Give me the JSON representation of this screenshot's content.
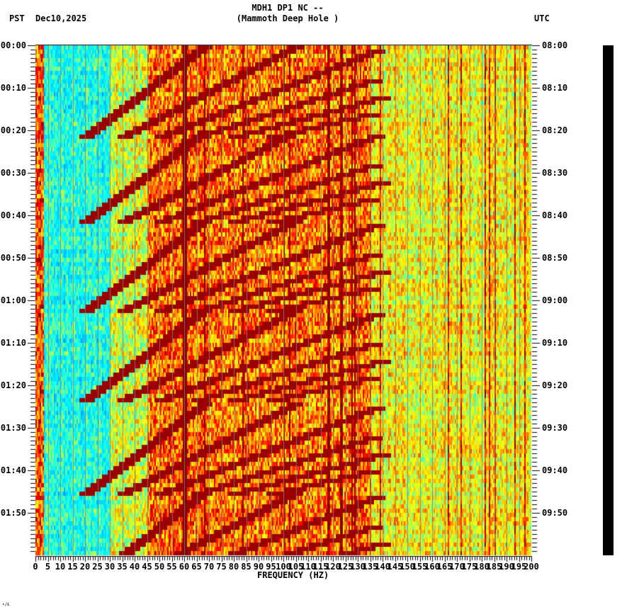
{
  "header": {
    "title_line1": "MDH1 DP1 NC --",
    "title_line2": "(Mammoth Deep Hole )",
    "left_timezone": "PST",
    "date": "Dec10,2025",
    "right_timezone": "UTC"
  },
  "footer_mark": "∙/Ł",
  "chart_data": {
    "type": "heatmap",
    "title": "MDH1 DP1 NC -- (Mammoth Deep Hole )",
    "subtitle": "Dec10,2025",
    "xlabel": "FREQUENCY (HZ)",
    "ylabel_left": "PST",
    "ylabel_right": "UTC",
    "xlim": [
      0,
      200
    ],
    "x_ticks": [
      0,
      5,
      10,
      15,
      20,
      25,
      30,
      35,
      40,
      45,
      50,
      55,
      60,
      65,
      70,
      75,
      80,
      85,
      90,
      95,
      100,
      105,
      110,
      115,
      120,
      125,
      130,
      135,
      140,
      145,
      150,
      155,
      160,
      165,
      170,
      175,
      180,
      185,
      190,
      195,
      200
    ],
    "x_tick_labels": [
      "0",
      "5",
      "10",
      "15",
      "20",
      "25",
      "30",
      "35",
      "40",
      "45",
      "50",
      "55",
      "60",
      "65",
      "70",
      "75",
      "80",
      "85",
      "90",
      "95",
      "100",
      "105",
      "110",
      "115",
      "120",
      "125",
      "130",
      "135",
      "140",
      "145",
      "150",
      "155",
      "160",
      "165",
      "170",
      "175",
      "180",
      "185",
      "190",
      "195",
      "200"
    ],
    "y_ticks_left": [
      "00:00",
      "00:10",
      "00:20",
      "00:30",
      "00:40",
      "00:50",
      "01:00",
      "01:10",
      "01:20",
      "01:30",
      "01:40",
      "01:50"
    ],
    "y_ticks_right": [
      "08:00",
      "08:10",
      "08:20",
      "08:30",
      "08:40",
      "08:50",
      "09:00",
      "09:10",
      "09:20",
      "09:30",
      "09:40",
      "09:50"
    ],
    "time_span_minutes": 120,
    "minor_tick_interval_minutes": 1,
    "grid": "vertical lines every 5 Hz",
    "colormap": [
      "#0050ff",
      "#00c8ff",
      "#00ffff",
      "#80ff80",
      "#ffff00",
      "#ff8000",
      "#ff0000",
      "#800000"
    ],
    "features": {
      "persistent_line_hz": 60,
      "chirp_harmonic_sequences_start_minutes": [
        0,
        20,
        41,
        62,
        84,
        105
      ],
      "chirp_repeat_period_minutes": 21.3,
      "chirp_fundamental_start_hz": 20,
      "chirp_harmonic_spacing_hz": 21,
      "low_noise_band_hz": [
        5,
        30
      ],
      "high_energy_band_hz": [
        35,
        135
      ],
      "moderate_band_hz": [
        135,
        200
      ]
    }
  }
}
